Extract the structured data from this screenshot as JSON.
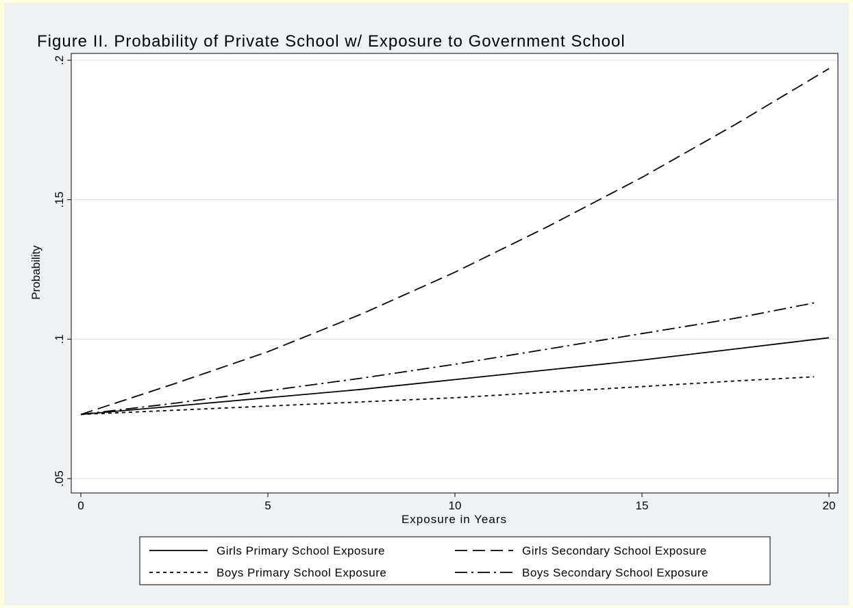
{
  "chart_data": {
    "type": "line",
    "title": "Figure II. Probability of Private School w/ Exposure to Government School",
    "xlabel": "Exposure in Years",
    "ylabel": "Probability",
    "xlim": [
      0,
      20
    ],
    "ylim": [
      0.05,
      0.2
    ],
    "xticks": [
      0,
      5,
      10,
      15,
      20
    ],
    "xtick_labels": [
      "0",
      "5",
      "10",
      "15",
      "20"
    ],
    "yticks": [
      0.05,
      0.1,
      0.15,
      0.2
    ],
    "ytick_labels": [
      ".05",
      ".1",
      ".15",
      ".2"
    ],
    "grid": "horizontal",
    "legend_position": "bottom",
    "series": [
      {
        "name": "Girls Primary School Exposure",
        "style": "solid",
        "x": [
          0,
          2.5,
          5,
          7.5,
          10,
          12.5,
          15,
          17.5,
          20
        ],
        "y": [
          0.073,
          0.076,
          0.079,
          0.082,
          0.0855,
          0.089,
          0.0925,
          0.0965,
          0.1005
        ]
      },
      {
        "name": "Girls Secondary School Exposure",
        "style": "longdash",
        "x": [
          0,
          2.5,
          5,
          7.5,
          10,
          12.5,
          15,
          17.5,
          20
        ],
        "y": [
          0.073,
          0.084,
          0.0955,
          0.109,
          0.124,
          0.1405,
          0.158,
          0.177,
          0.197
        ]
      },
      {
        "name": "Boys Primary School Exposure",
        "style": "shortdash",
        "x": [
          0,
          2.5,
          5,
          7.5,
          10,
          12.5,
          15,
          17.5,
          19.6
        ],
        "y": [
          0.073,
          0.0745,
          0.076,
          0.0775,
          0.079,
          0.081,
          0.083,
          0.085,
          0.0865
        ]
      },
      {
        "name": "Boys Secondary School Exposure",
        "style": "dashdot",
        "x": [
          0,
          2.5,
          5,
          7.5,
          10,
          12.5,
          15,
          17.5,
          19.6
        ],
        "y": [
          0.073,
          0.077,
          0.0815,
          0.086,
          0.091,
          0.0965,
          0.102,
          0.1075,
          0.113
        ]
      }
    ]
  }
}
